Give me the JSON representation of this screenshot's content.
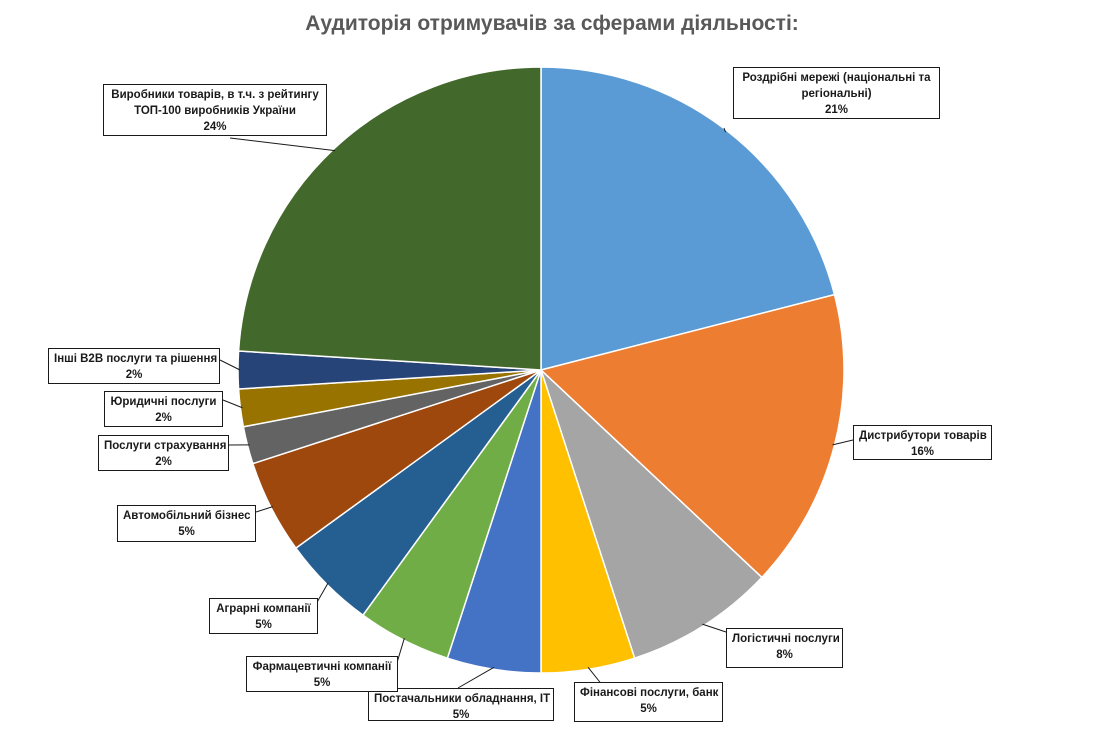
{
  "chart_data": {
    "type": "pie",
    "title": "Аудиторія отримувачів за сферами діяльності:",
    "slices": [
      {
        "label": "Роздрібні мережі (національні та регіональні)",
        "label_lines": [
          "Роздрібні мережі (національні та",
          "регіональні)"
        ],
        "value": 21,
        "value_label": "21%",
        "color": "#5B9BD5"
      },
      {
        "label": "Дистрибутори товарів",
        "label_lines": [
          "Дистрибутори товарів"
        ],
        "value": 16,
        "value_label": "16%",
        "color": "#ED7D31"
      },
      {
        "label": "Логістичні послуги",
        "label_lines": [
          "Логістичні послуги"
        ],
        "value": 8,
        "value_label": "8%",
        "color": "#A5A5A5"
      },
      {
        "label": "Фінансові послуги, банк",
        "label_lines": [
          "Фінансові послуги, банк"
        ],
        "value": 5,
        "value_label": "5%",
        "color": "#FFC000"
      },
      {
        "label": "Постачальники обладнання, ІТ",
        "label_lines": [
          "Постачальники обладнання, ІТ"
        ],
        "value": 5,
        "value_label": "5%",
        "color": "#4472C4"
      },
      {
        "label": "Фармацевтичні компанії",
        "label_lines": [
          "Фармацевтичні компанії"
        ],
        "value": 5,
        "value_label": "5%",
        "color": "#70AD47"
      },
      {
        "label": "Аграрні компанії",
        "label_lines": [
          "Аграрні компанії"
        ],
        "value": 5,
        "value_label": "5%",
        "color": "#255E91"
      },
      {
        "label": "Автомобільний бізнес",
        "label_lines": [
          "Автомобільний бізнес"
        ],
        "value": 5,
        "value_label": "5%",
        "color": "#9E480E"
      },
      {
        "label": "Послуги страхування",
        "label_lines": [
          "Послуги страхування"
        ],
        "value": 2,
        "value_label": "2%",
        "color": "#636363"
      },
      {
        "label": "Юридичні послуги",
        "label_lines": [
          "Юридичні послуги"
        ],
        "value": 2,
        "value_label": "2%",
        "color": "#997300"
      },
      {
        "label": "Інші B2B послуги та рішення",
        "label_lines": [
          "Інші B2B послуги та рішення"
        ],
        "value": 2,
        "value_label": "2%",
        "color": "#264478"
      },
      {
        "label": "Виробники товарів, в т.ч. з рейтингу ТОП-100 виробників України",
        "label_lines": [
          "Виробники товарів, в т.ч. з рейтингу",
          "ТОП-100 виробників України"
        ],
        "value": 24,
        "value_label": "24%",
        "color": "#43682B"
      }
    ],
    "legend": "none"
  }
}
